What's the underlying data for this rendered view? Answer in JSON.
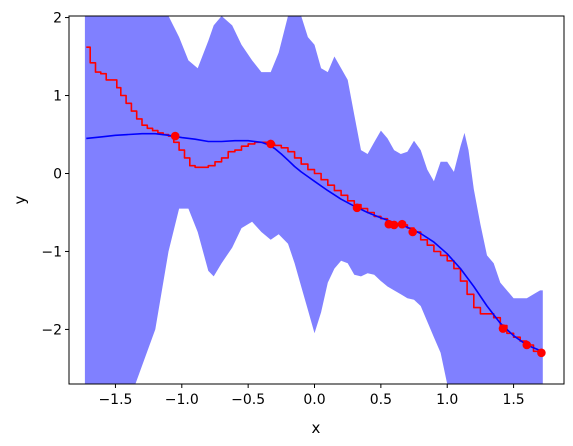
{
  "chart_data": {
    "type": "line",
    "xlabel": "x",
    "ylabel": "y",
    "xlim": [
      -1.85,
      1.88
    ],
    "ylim": [
      -2.7,
      2.02
    ],
    "xticks": [
      -1.5,
      -1.0,
      -0.5,
      0.0,
      0.5,
      1.0,
      1.5
    ],
    "xtick_labels": [
      "−1.5",
      "−1.0",
      "−0.5",
      "0.0",
      "0.5",
      "1.0",
      "1.5"
    ],
    "yticks": [
      -2,
      -1,
      0,
      1,
      2
    ],
    "ytick_labels": [
      "−2",
      "−1",
      "0",
      "1",
      "2"
    ],
    "grid": false,
    "colors": {
      "band": "#8080ff",
      "mean": "#0000ff",
      "true": "#ff0000",
      "points": "#ff0000"
    },
    "confidence_band": {
      "x": [
        -1.73,
        -1.55,
        -1.35,
        -1.2,
        -1.1,
        -1.02,
        -0.95,
        -0.88,
        -0.8,
        -0.76,
        -0.7,
        -0.62,
        -0.55,
        -0.47,
        -0.4,
        -0.33,
        -0.27,
        -0.2,
        -0.15,
        -0.1,
        -0.05,
        0.0,
        0.05,
        0.1,
        0.15,
        0.2,
        0.25,
        0.3,
        0.35,
        0.4,
        0.45,
        0.5,
        0.55,
        0.6,
        0.65,
        0.7,
        0.75,
        0.8,
        0.85,
        0.9,
        0.95,
        1.0,
        1.05,
        1.1,
        1.13,
        1.16,
        1.2,
        1.25,
        1.3,
        1.35,
        1.4,
        1.45,
        1.5,
        1.55,
        1.6,
        1.65,
        1.7,
        1.72
      ],
      "upper": [
        2.02,
        2.02,
        2.02,
        2.02,
        2.02,
        1.75,
        1.45,
        1.35,
        1.7,
        1.9,
        2.02,
        1.9,
        1.65,
        1.45,
        1.3,
        1.3,
        1.55,
        2.02,
        2.02,
        2.02,
        1.75,
        1.65,
        1.35,
        1.3,
        1.5,
        1.35,
        1.2,
        0.75,
        0.3,
        0.25,
        0.4,
        0.55,
        0.45,
        0.3,
        0.25,
        0.28,
        0.42,
        0.3,
        0.05,
        -0.1,
        0.15,
        0.15,
        0.02,
        0.35,
        0.52,
        0.3,
        -0.2,
        -0.65,
        -1.05,
        -1.15,
        -1.4,
        -1.5,
        -1.6,
        -1.6,
        -1.6,
        -1.55,
        -1.5,
        -1.5
      ],
      "lower": [
        -2.7,
        -2.7,
        -2.7,
        -2.0,
        -1.0,
        -0.45,
        -0.45,
        -0.75,
        -1.25,
        -1.32,
        -1.15,
        -0.95,
        -0.7,
        -0.62,
        -0.75,
        -0.85,
        -0.78,
        -0.9,
        -1.15,
        -1.45,
        -1.75,
        -2.05,
        -1.78,
        -1.4,
        -1.22,
        -1.12,
        -1.15,
        -1.3,
        -1.32,
        -1.28,
        -1.3,
        -1.38,
        -1.45,
        -1.5,
        -1.55,
        -1.6,
        -1.62,
        -1.7,
        -1.9,
        -2.1,
        -2.3,
        -2.7,
        -2.7,
        -2.7,
        -2.7,
        -2.7,
        -2.7,
        -2.7,
        -2.7,
        -2.7,
        -2.7,
        -2.7,
        -2.7,
        -2.7,
        -2.7,
        -2.7,
        -2.7,
        -2.7
      ]
    },
    "series": [
      {
        "style": "step",
        "color": "#ff0000",
        "x": [
          -1.72,
          -1.69,
          -1.65,
          -1.61,
          -1.57,
          -1.53,
          -1.49,
          -1.46,
          -1.42,
          -1.38,
          -1.34,
          -1.3,
          -1.26,
          -1.22,
          -1.18,
          -1.14,
          -1.1,
          -1.06,
          -1.02,
          -0.98,
          -0.94,
          -0.9,
          -0.85,
          -0.8,
          -0.75,
          -0.7,
          -0.65,
          -0.6,
          -0.55,
          -0.5,
          -0.45,
          -0.4,
          -0.35,
          -0.3,
          -0.25,
          -0.2,
          -0.15,
          -0.1,
          -0.05,
          0.0,
          0.05,
          0.1,
          0.15,
          0.2,
          0.25,
          0.3,
          0.35,
          0.4,
          0.45,
          0.5,
          0.55,
          0.6,
          0.65,
          0.7,
          0.75,
          0.8,
          0.85,
          0.9,
          0.95,
          1.0,
          1.05,
          1.1,
          1.15,
          1.2,
          1.25,
          1.3,
          1.35,
          1.4,
          1.45,
          1.5,
          1.55,
          1.6,
          1.65,
          1.7
        ],
        "values": [
          1.62,
          1.42,
          1.3,
          1.28,
          1.2,
          1.2,
          1.1,
          1.0,
          0.9,
          0.8,
          0.7,
          0.62,
          0.58,
          0.55,
          0.52,
          0.5,
          0.48,
          0.4,
          0.3,
          0.2,
          0.1,
          0.08,
          0.08,
          0.1,
          0.15,
          0.2,
          0.28,
          0.3,
          0.35,
          0.38,
          0.4,
          0.4,
          0.38,
          0.36,
          0.33,
          0.28,
          0.2,
          0.12,
          0.05,
          0.0,
          -0.08,
          -0.15,
          -0.22,
          -0.28,
          -0.35,
          -0.4,
          -0.45,
          -0.5,
          -0.55,
          -0.58,
          -0.62,
          -0.66,
          -0.66,
          -0.7,
          -0.75,
          -0.85,
          -0.92,
          -1.0,
          -1.05,
          -1.12,
          -1.22,
          -1.38,
          -1.55,
          -1.72,
          -1.8,
          -1.8,
          -1.85,
          -1.95,
          -2.05,
          -2.1,
          -2.15,
          -2.2,
          -2.28,
          -2.3
        ]
      },
      {
        "style": "line",
        "color": "#0000ff",
        "x": [
          -1.72,
          -1.6,
          -1.5,
          -1.4,
          -1.3,
          -1.2,
          -1.1,
          -1.0,
          -0.9,
          -0.8,
          -0.7,
          -0.6,
          -0.5,
          -0.4,
          -0.35,
          -0.3,
          -0.25,
          -0.2,
          -0.15,
          -0.1,
          -0.05,
          0.0,
          0.1,
          0.2,
          0.3,
          0.4,
          0.5,
          0.6,
          0.7,
          0.8,
          0.9,
          1.0,
          1.1,
          1.2,
          1.3,
          1.4,
          1.5,
          1.6,
          1.7
        ],
        "values": [
          0.45,
          0.47,
          0.49,
          0.5,
          0.51,
          0.51,
          0.49,
          0.46,
          0.44,
          0.41,
          0.41,
          0.42,
          0.42,
          0.4,
          0.37,
          0.32,
          0.25,
          0.17,
          0.09,
          0.02,
          -0.04,
          -0.1,
          -0.22,
          -0.33,
          -0.42,
          -0.5,
          -0.57,
          -0.63,
          -0.69,
          -0.77,
          -0.88,
          -1.03,
          -1.22,
          -1.45,
          -1.7,
          -1.92,
          -2.08,
          -2.2,
          -2.27
        ]
      }
    ],
    "points": {
      "color": "#ff0000",
      "x": [
        -1.05,
        -0.33,
        0.32,
        0.56,
        0.6,
        0.66,
        0.74,
        1.42,
        1.6,
        1.71
      ],
      "y": [
        0.48,
        0.38,
        -0.44,
        -0.65,
        -0.66,
        -0.65,
        -0.75,
        -1.99,
        -2.2,
        -2.3
      ]
    }
  }
}
